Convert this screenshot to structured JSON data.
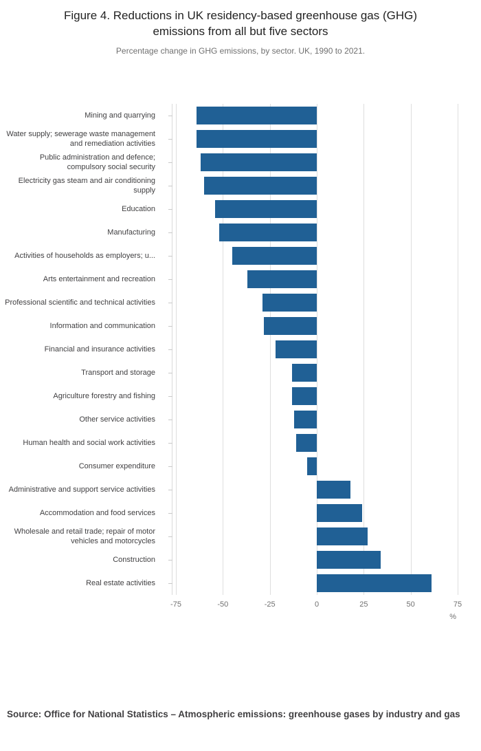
{
  "header": {
    "title": "Figure 4. Reductions in UK residency-based greenhouse gas (GHG) emissions from all but five sectors",
    "subtitle": "Percentage change in GHG emissions, by sector. UK, 1990 to 2021."
  },
  "chart_data": {
    "type": "bar",
    "orientation": "horizontal",
    "title": "Figure 4. Reductions in UK residency-based greenhouse gas (GHG) emissions from all but five sectors",
    "subtitle": "Percentage change in GHG emissions, by sector. UK, 1990 to 2021.",
    "categories": [
      "Mining and quarrying",
      "Water supply; sewerage waste management and remediation activities",
      "Public administration and defence; compulsory social security",
      "Electricity gas steam and air conditioning supply",
      "Education",
      "Manufacturing",
      "Activities of households as employers; u...",
      "Arts entertainment and recreation",
      "Professional scientific and technical activities",
      "Information and communication",
      "Financial and insurance activities",
      "Transport and storage",
      "Agriculture forestry and fishing",
      "Other service activities",
      "Human health and social work activities",
      "Consumer expenditure",
      "Administrative and support service activities",
      "Accommodation and food services",
      "Wholesale and retail trade; repair of motor vehicles and motorcycles",
      "Construction",
      "Real estate activities"
    ],
    "values": [
      -64,
      -64,
      -62,
      -60,
      -54,
      -52,
      -45,
      -37,
      -29,
      -28,
      -22,
      -13,
      -13,
      -12,
      -11,
      -5,
      18,
      24,
      27,
      34,
      61
    ],
    "xlim": [
      -75,
      75
    ],
    "xticks": [
      -75,
      -50,
      -25,
      0,
      25,
      50,
      75
    ],
    "xtick_labels": [
      "-75",
      "-50",
      "-25",
      "0",
      "25",
      "50",
      "75"
    ],
    "x_unit_label": "%",
    "bar_color": "#206095",
    "grid": true,
    "legend": "none"
  },
  "footer": {
    "source": "Source: Office for National Statistics – Atmospheric emissions: greenhouse gases by industry and gas"
  }
}
